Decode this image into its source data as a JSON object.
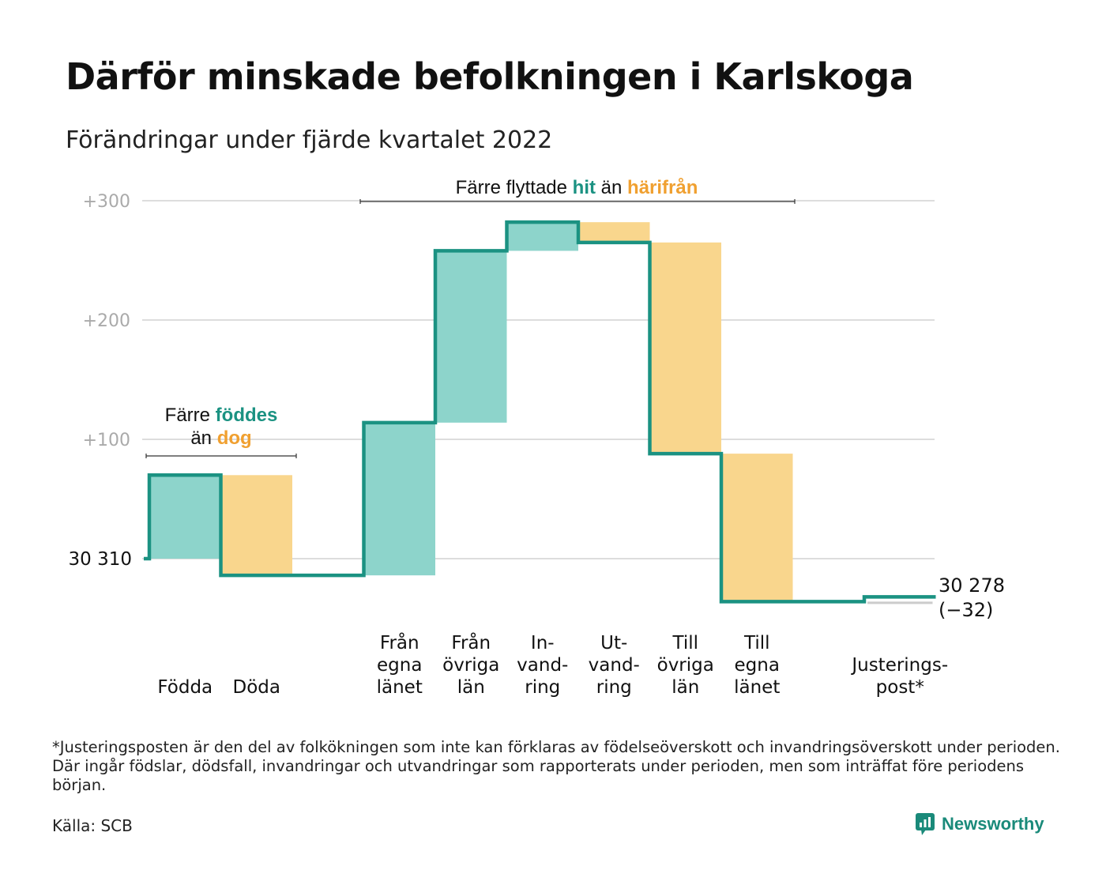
{
  "header": {
    "title": "Därför minskade befolkningen i Karlskoga",
    "subtitle": "Förändringar under fjärde kvartalet 2022"
  },
  "chart_data": {
    "type": "waterfall",
    "start_value": 30310,
    "start_label": "30 310",
    "end_label_line1": "30 278",
    "end_label_line2": "(−32)",
    "y_ticks": [
      {
        "value": 300,
        "label": "+300"
      },
      {
        "value": 200,
        "label": "+200"
      },
      {
        "value": 100,
        "label": "+100"
      }
    ],
    "ylim": [
      -55,
      305
    ],
    "steps": [
      {
        "label": [
          "Födda"
        ],
        "change": 70,
        "kind": "in"
      },
      {
        "label": [
          "Döda"
        ],
        "change": -84,
        "kind": "out"
      },
      {
        "label": [],
        "change": 0,
        "kind": "gap"
      },
      {
        "label": [
          "Från",
          "egna",
          "länet"
        ],
        "change": 128,
        "kind": "in"
      },
      {
        "label": [
          "Från",
          "övriga",
          "län"
        ],
        "change": 144,
        "kind": "in"
      },
      {
        "label": [
          "In-",
          "vand-",
          "ring"
        ],
        "change": 24,
        "kind": "in"
      },
      {
        "label": [
          "Ut-",
          "vand-",
          "ring"
        ],
        "change": -17,
        "kind": "out"
      },
      {
        "label": [
          "Till",
          "övriga",
          "län"
        ],
        "change": -177,
        "kind": "out"
      },
      {
        "label": [
          "Till",
          "egna",
          "länet"
        ],
        "change": -124,
        "kind": "out"
      },
      {
        "label": [],
        "change": 0,
        "kind": "gap"
      },
      {
        "label": [
          "Justerings-",
          "post*"
        ],
        "change": 4,
        "kind": "adj"
      }
    ],
    "annotations": [
      {
        "id": "births",
        "parts": [
          {
            "text": "Färre ",
            "style": "plain"
          },
          {
            "text": "föddes",
            "style": "in"
          }
        ],
        "parts2": [
          {
            "text": "än ",
            "style": "plain"
          },
          {
            "text": "dog",
            "style": "out"
          }
        ]
      },
      {
        "id": "migration",
        "parts": [
          {
            "text": "Färre flyttade ",
            "style": "plain"
          },
          {
            "text": "hit",
            "style": "in"
          },
          {
            "text": " än ",
            "style": "plain"
          },
          {
            "text": "härifrån",
            "style": "out"
          }
        ]
      }
    ],
    "colors": {
      "in_fill": "#8dd4cb",
      "out_fill": "#f9d68d",
      "adj_fill": "#cccccc",
      "line": "#1b9282",
      "in_text": "#1b9282",
      "out_text": "#f0a030",
      "grid": "#dddddd",
      "tick_text": "#aaaaaa"
    }
  },
  "footer": {
    "footnote": "*Justeringsposten är den del av folkökningen som inte kan förklaras av födelseöverskott och invandringsöverskott under perioden. Där ingår födslar, dödsfall, invandringar och utvandringar som rapporterats under perioden, men som inträffat före periodens början.",
    "source": "Källa: SCB",
    "logo_text": "Newsworthy",
    "logo_icon": "chart-bubble-icon"
  }
}
